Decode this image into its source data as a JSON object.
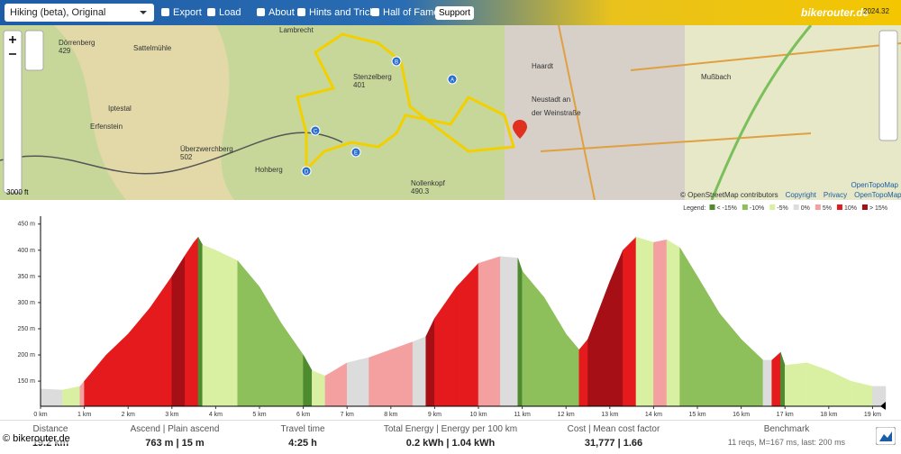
{
  "toolbar": {
    "profile": "Hiking (beta), Original",
    "buttons": [
      "Export",
      "Load",
      "About",
      "Hints and Tricks",
      "Hall of Fame",
      "Support"
    ],
    "logo": "bikerouter.de",
    "version": "2024.32"
  },
  "map": {
    "labels": [
      "Lambrecht",
      "Dörrenberg\n429",
      "Sattelmühle",
      "Iptestal",
      "Erfenstein",
      "Stenzelberg\n401",
      "Überzwerchberg\n502",
      "Hohberg",
      "Nollenkopf\n490.3",
      "Neustadt an\nder Weinstraße",
      "Haardt",
      "Mußbach"
    ],
    "waypoints": [
      "A",
      "B",
      "C",
      "D",
      "E"
    ],
    "scale": "3000 ft",
    "layer": "OpenTopoMap",
    "attribution": [
      "© OpenStreetMap contributors",
      "Copyright",
      "Privacy",
      "OpenTopoMap"
    ]
  },
  "chart_data": {
    "type": "area",
    "legend_title": "Legend:",
    "legend": [
      {
        "label": "< -15%",
        "color": "#4e8a2e"
      },
      {
        "label": "-10%",
        "color": "#8dc05a"
      },
      {
        "label": "-5%",
        "color": "#d9f0a3"
      },
      {
        "label": "0%",
        "color": "#dcdcdc"
      },
      {
        "label": "5%",
        "color": "#f4a0a0"
      },
      {
        "label": "10%",
        "color": "#e41a1c"
      },
      {
        "label": "> 15%",
        "color": "#a50f15"
      }
    ],
    "x": [
      0,
      0.5,
      0.9,
      1,
      1.5,
      2,
      2.5,
      3,
      3.3,
      3.5,
      3.6,
      3.7,
      4,
      4.5,
      5,
      5.5,
      6,
      6.2,
      6.5,
      6.8,
      7,
      7.5,
      8,
      8.5,
      8.8,
      9,
      9.5,
      10,
      10.5,
      10.9,
      11,
      11.5,
      12,
      12.3,
      12.5,
      13,
      13.3,
      13.6,
      14,
      14.3,
      14.6,
      15,
      15.5,
      16,
      16.5,
      16.7,
      16.9,
      17,
      17.5,
      18,
      18.5,
      19,
      19.3
    ],
    "values": [
      135,
      133,
      140,
      150,
      200,
      240,
      290,
      350,
      390,
      415,
      425,
      410,
      400,
      380,
      330,
      260,
      200,
      170,
      160,
      175,
      185,
      195,
      210,
      225,
      235,
      270,
      330,
      375,
      388,
      385,
      360,
      310,
      240,
      210,
      230,
      340,
      400,
      425,
      415,
      420,
      405,
      350,
      280,
      230,
      190,
      190,
      205,
      180,
      185,
      170,
      150,
      140,
      140
    ],
    "segment_colors": [
      "#dcdcdc",
      "#d9f0a3",
      "#f4a0a0",
      "#e41a1c",
      "#e41a1c",
      "#e41a1c",
      "#e41a1c",
      "#a50f15",
      "#e41a1c",
      "#e41a1c",
      "#4e8a2e",
      "#d9f0a3",
      "#d9f0a3",
      "#8dc05a",
      "#8dc05a",
      "#8dc05a",
      "#4e8a2e",
      "#d9f0a3",
      "#f4a0a0",
      "#f4a0a0",
      "#dcdcdc",
      "#f4a0a0",
      "#f4a0a0",
      "#dcdcdc",
      "#a50f15",
      "#e41a1c",
      "#e41a1c",
      "#f4a0a0",
      "#dcdcdc",
      "#4e8a2e",
      "#8dc05a",
      "#8dc05a",
      "#8dc05a",
      "#e41a1c",
      "#a50f15",
      "#a50f15",
      "#e41a1c",
      "#d9f0a3",
      "#f4a0a0",
      "#d9f0a3",
      "#8dc05a",
      "#8dc05a",
      "#8dc05a",
      "#8dc05a",
      "#dcdcdc",
      "#e41a1c",
      "#4e8a2e",
      "#d9f0a3",
      "#d9f0a3",
      "#d9f0a3",
      "#d9f0a3",
      "#dcdcdc"
    ],
    "xlim": [
      0,
      19.3
    ],
    "ylim": [
      102,
      465
    ],
    "xticks": [
      {
        "value": 0,
        "label": "0 km"
      },
      {
        "value": 1,
        "label": "1 km"
      },
      {
        "value": 2,
        "label": "2 km"
      },
      {
        "value": 3,
        "label": "3 km"
      },
      {
        "value": 4,
        "label": "4 km"
      },
      {
        "value": 5,
        "label": "5 km"
      },
      {
        "value": 6,
        "label": "6 km"
      },
      {
        "value": 7,
        "label": "7 km"
      },
      {
        "value": 8,
        "label": "8 km"
      },
      {
        "value": 9,
        "label": "9 km"
      },
      {
        "value": 10,
        "label": "10 km"
      },
      {
        "value": 11,
        "label": "11 km"
      },
      {
        "value": 12,
        "label": "12 km"
      },
      {
        "value": 13,
        "label": "13 km"
      },
      {
        "value": 14,
        "label": "14 km"
      },
      {
        "value": 15,
        "label": "15 km"
      },
      {
        "value": 16,
        "label": "16 km"
      },
      {
        "value": 17,
        "label": "17 km"
      },
      {
        "value": 18,
        "label": "18 km"
      },
      {
        "value": 19,
        "label": "19 km"
      }
    ],
    "yticks": [
      {
        "value": 150,
        "label": "150 m"
      },
      {
        "value": 200,
        "label": "200 m"
      },
      {
        "value": 250,
        "label": "250 m"
      },
      {
        "value": 300,
        "label": "300 m"
      },
      {
        "value": 350,
        "label": "350 m"
      },
      {
        "value": 400,
        "label": "400 m"
      },
      {
        "value": 450,
        "label": "450 m"
      }
    ]
  },
  "stats": [
    {
      "label": "Distance",
      "value": "19.2 km"
    },
    {
      "label": "Ascend | Plain ascend",
      "value": "763 m | 15 m"
    },
    {
      "label": "Travel time",
      "value": "4:25 h"
    },
    {
      "label": "Total Energy | Energy per 100 km",
      "value": "0.2 kWh | 1.04 kWh"
    },
    {
      "label": "Cost | Mean cost factor",
      "value": "31,777 | 1.66"
    },
    {
      "label": "Benchmark",
      "value": "11 reqs, M=167 ms, last: 200 ms"
    }
  ],
  "copyright": "© bikerouter.de"
}
